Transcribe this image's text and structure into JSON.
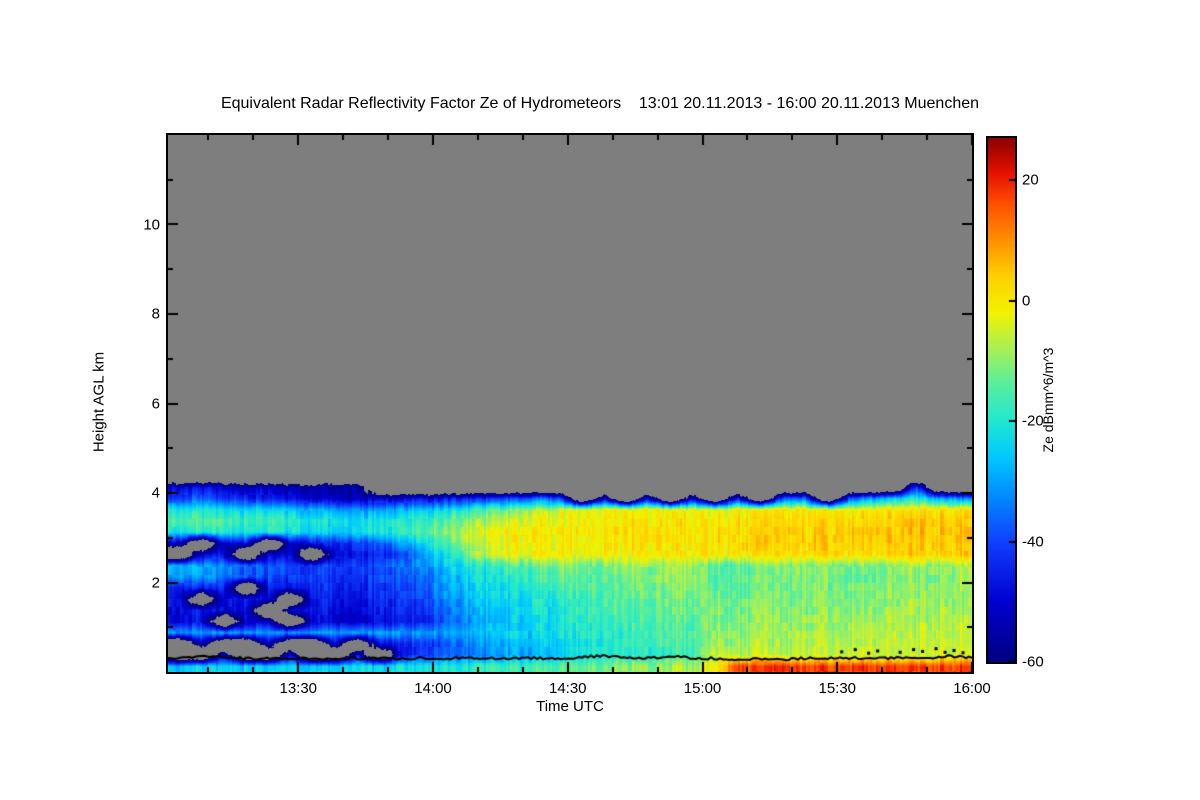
{
  "title": "Equivalent Radar Reflectivity Factor Ze of Hydrometeors    13:01 20.11.2013 - 16:00 20.11.2013 Muenchen",
  "chart_data": {
    "type": "heatmap",
    "title": "Equivalent Radar Reflectivity Factor Ze of Hydrometeors",
    "time_range": "13:01 20.11.2013 - 16:00 20.11.2013",
    "station": "Muenchen",
    "no_data_color": "#7e7e7e",
    "x_axis": {
      "label": "Time UTC",
      "start": "13:01",
      "end": "16:00",
      "total_minutes": 179,
      "major_ticks": [
        {
          "minute": 29,
          "label": "13:30"
        },
        {
          "minute": 59,
          "label": "14:00"
        },
        {
          "minute": 89,
          "label": "14:30"
        },
        {
          "minute": 119,
          "label": "15:00"
        },
        {
          "minute": 149,
          "label": "15:30"
        },
        {
          "minute": 179,
          "label": "16:00"
        }
      ],
      "minor_minutes": [
        9,
        19,
        39,
        49,
        69,
        79,
        99,
        109,
        129,
        139,
        159,
        169
      ]
    },
    "y_axis": {
      "label": "Height AGL km",
      "min": 0,
      "max": 12,
      "major_ticks": [
        2,
        4,
        6,
        8,
        10
      ],
      "minor_ticks": [
        1,
        3,
        5,
        7,
        9,
        11
      ]
    },
    "colorbar": {
      "label": "Ze dBmm^6/m^3",
      "min": -60,
      "max": 27,
      "ticks": [
        20,
        0,
        -20,
        -40,
        -60
      ]
    },
    "colormap": {
      "min": -60,
      "stops": [
        [
          -60,
          "#000080"
        ],
        [
          -50,
          "#0000d0"
        ],
        [
          -40,
          "#1040ff"
        ],
        [
          -32,
          "#0090ff"
        ],
        [
          -26,
          "#00c8ff"
        ],
        [
          -20,
          "#20e8d0"
        ],
        [
          -14,
          "#55eea0"
        ],
        [
          -8,
          "#a8f055"
        ],
        [
          -2,
          "#f2f200"
        ],
        [
          4,
          "#ffd000"
        ],
        [
          10,
          "#ff9000"
        ],
        [
          16,
          "#ff5000"
        ],
        [
          21,
          "#e81200"
        ],
        [
          27,
          "#8b0000"
        ]
      ]
    },
    "grid": {
      "description": "Ze dBZ on 5-min x 0.25-km cells, rows bottom_to_top from 0 to 4.5 km AGL, null = no echo (gray); region above 4.5 km has no echo",
      "top_km": 4.5,
      "cell_km": 0.25,
      "dt_minutes_approx": 5,
      "values": [
        [
          -25,
          -25,
          -25,
          -25,
          -25,
          -25,
          -25,
          -25,
          -24,
          -24,
          -22,
          -22,
          -20,
          -20,
          -18,
          -18,
          -16,
          -15,
          -12,
          -12,
          -10,
          -10,
          -8,
          -8,
          0,
          16,
          17,
          18,
          17,
          18,
          17,
          18,
          17,
          18,
          17,
          18
        ],
        [
          null,
          null,
          -52,
          null,
          null,
          -50,
          null,
          null,
          -48,
          null,
          -45,
          -40,
          -38,
          -35,
          -32,
          -30,
          -28,
          -26,
          -22,
          -20,
          -19,
          -18,
          -18,
          -17,
          -4,
          -8,
          -7,
          -7,
          -6,
          -6,
          -6,
          -5,
          -6,
          -5,
          -5,
          -4
        ],
        [
          null,
          -55,
          null,
          null,
          -52,
          null,
          null,
          -50,
          null,
          -48,
          -45,
          -42,
          -38,
          -34,
          -30,
          -28,
          -26,
          -24,
          -20,
          -19,
          -18,
          -17,
          -16,
          -16,
          -8,
          -9,
          -8,
          -8,
          -7,
          -7,
          -7,
          -6,
          -6,
          -6,
          -5,
          -5
        ],
        [
          -30,
          -32,
          -30,
          -31,
          -30,
          -32,
          -31,
          -30,
          -31,
          -30,
          -31,
          -32,
          -30,
          -28,
          -26,
          -25,
          -24,
          -22,
          -19,
          -18,
          -17,
          -16,
          -15,
          -15,
          -9,
          -10,
          -9,
          -9,
          -8,
          -8,
          -8,
          -7,
          -7,
          -7,
          -6,
          -6
        ],
        [
          -50,
          -48,
          null,
          -52,
          -50,
          null,
          -48,
          -50,
          -52,
          -48,
          -46,
          -44,
          -36,
          -32,
          -28,
          -26,
          -24,
          -22,
          -18,
          -17,
          -16,
          -15,
          -14,
          -14,
          -10,
          -11,
          -10,
          -10,
          -9,
          -9,
          -9,
          -8,
          -8,
          -8,
          -7,
          -7
        ],
        [
          -48,
          -46,
          -50,
          -48,
          null,
          -50,
          -46,
          -48,
          -50,
          -46,
          -44,
          -42,
          -34,
          -30,
          -27,
          -25,
          -23,
          -21,
          -17,
          -16,
          -15,
          -14,
          -13,
          -13,
          -11,
          -12,
          -11,
          -11,
          -10,
          -10,
          -10,
          -9,
          -9,
          -9,
          -8,
          -8
        ],
        [
          -46,
          null,
          -48,
          -46,
          -50,
          null,
          -44,
          -46,
          -48,
          -44,
          -42,
          -40,
          -32,
          -28,
          -25,
          -23,
          -21,
          -19,
          -16,
          -15,
          -14,
          -13,
          -12,
          -12,
          -12,
          -13,
          -12,
          -12,
          -11,
          -10,
          -11,
          -10,
          -10,
          -9,
          -9,
          -8
        ],
        [
          -44,
          -46,
          -44,
          null,
          -46,
          -48,
          -42,
          -44,
          -46,
          -42,
          -40,
          -38,
          -30,
          -26,
          -23,
          -21,
          -19,
          -17,
          -15,
          -14,
          -13,
          -12,
          -11,
          -11,
          -13,
          -14,
          -13,
          -12,
          -11,
          -11,
          -12,
          -11,
          -10,
          -10,
          -9,
          -9
        ],
        [
          -30,
          -32,
          -35,
          -38,
          -40,
          -42,
          -40,
          -42,
          -44,
          -40,
          -38,
          -36,
          -28,
          -24,
          -21,
          -19,
          -17,
          -15,
          -14,
          -13,
          -12,
          -11,
          -10,
          -10,
          -14,
          -15,
          -13,
          -12,
          -11,
          -11,
          -13,
          -12,
          -11,
          -10,
          -10,
          -9
        ],
        [
          -28,
          -30,
          -33,
          -36,
          -38,
          -40,
          -42,
          -40,
          -42,
          -38,
          -35,
          -32,
          -25,
          -21,
          -18,
          -15,
          -13,
          -11,
          -12,
          -11,
          -10,
          -9,
          -8,
          -8,
          -15,
          -14,
          -12,
          -11,
          -10,
          -10,
          -12,
          -11,
          -10,
          -9,
          -9,
          -8
        ],
        [
          null,
          -50,
          -48,
          null,
          -52,
          -50,
          null,
          -48,
          -46,
          -44,
          -40,
          -30,
          -20,
          -12,
          -6,
          -3,
          -2,
          -2,
          -2,
          -1,
          -1,
          0,
          -1,
          0,
          0,
          1,
          0,
          2,
          1,
          3,
          2,
          3,
          2,
          4,
          3,
          5
        ],
        [
          -52,
          null,
          -50,
          -48,
          null,
          -52,
          -46,
          -44,
          -42,
          -38,
          -30,
          -22,
          -14,
          -8,
          -4,
          -2,
          -1,
          -1,
          0,
          0,
          1,
          1,
          0,
          1,
          1,
          2,
          3,
          2,
          4,
          3,
          3,
          4,
          5,
          3,
          6,
          4
        ],
        [
          -22,
          -20,
          -21,
          -22,
          -20,
          -22,
          -24,
          -26,
          -24,
          -22,
          -18,
          -14,
          -10,
          -6,
          -3,
          -1,
          0,
          0,
          0,
          1,
          1,
          2,
          1,
          1,
          1,
          2,
          2,
          3,
          3,
          4,
          3,
          5,
          4,
          6,
          5,
          6
        ],
        [
          -16,
          -15,
          -16,
          -17,
          -16,
          -18,
          -20,
          -22,
          -24,
          -22,
          -20,
          -18,
          -14,
          -10,
          -7,
          -5,
          -3,
          -2,
          -1,
          0,
          0,
          1,
          0,
          0,
          0,
          1,
          1,
          2,
          2,
          3,
          2,
          3,
          3,
          5,
          4,
          4
        ],
        [
          -22,
          -20,
          -22,
          -24,
          -25,
          -26,
          -28,
          -30,
          -32,
          -30,
          -28,
          -26,
          -22,
          -18,
          -15,
          -12,
          -8,
          -5,
          -3,
          -2,
          -2,
          -1,
          -2,
          -2,
          -2,
          -1,
          -2,
          -1,
          0,
          0,
          -1,
          0,
          0,
          2,
          1,
          1
        ],
        [
          -40,
          -38,
          -42,
          -44,
          -46,
          -48,
          -50,
          -52,
          -54,
          -52,
          -50,
          -48,
          -46,
          -44,
          -42,
          -40,
          -38,
          -36,
          null,
          -50,
          null,
          -48,
          null,
          -50,
          null,
          -45,
          null,
          -40,
          -35,
          null,
          -40,
          -30,
          -25,
          -20,
          -28,
          -32
        ],
        [
          -50,
          -48,
          -52,
          -54,
          -52,
          -55,
          -56,
          -54,
          -56,
          null,
          null,
          null,
          null,
          null,
          null,
          null,
          null,
          null,
          null,
          null,
          null,
          null,
          null,
          null,
          null,
          null,
          null,
          null,
          null,
          null,
          null,
          null,
          null,
          -40,
          null,
          null
        ],
        [
          null,
          null,
          null,
          null,
          null,
          null,
          null,
          null,
          null,
          null,
          null,
          null,
          null,
          null,
          null,
          null,
          null,
          null,
          null,
          null,
          null,
          null,
          null,
          null,
          null,
          null,
          null,
          null,
          null,
          null,
          null,
          null,
          null,
          null,
          null,
          null
        ]
      ]
    },
    "surface_line_km": [
      0.3,
      0.32,
      0.36,
      0.31,
      0.3,
      0.31,
      0.3,
      0.3,
      0.31,
      0.3,
      0.3,
      0.31,
      0.3,
      0.32,
      0.31,
      0.3,
      0.31,
      0.3,
      0.33,
      0.36,
      0.32,
      0.31,
      0.34,
      0.31,
      0.3,
      0.28,
      0.3,
      0.29,
      0.31,
      0.3,
      0.32,
      0.3,
      0.33,
      0.31,
      0.35,
      0.32
    ],
    "surface_dots": [
      [
        150,
        0.45
      ],
      [
        153,
        0.5
      ],
      [
        156,
        0.42
      ],
      [
        158,
        0.47
      ],
      [
        163,
        0.44
      ],
      [
        166,
        0.5
      ],
      [
        168,
        0.46
      ],
      [
        171,
        0.52
      ],
      [
        173,
        0.44
      ],
      [
        175,
        0.48
      ],
      [
        177,
        0.43
      ]
    ]
  }
}
